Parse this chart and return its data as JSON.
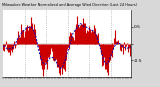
{
  "title": "Milwaukee Weather Normalized and Average Wind Direction (Last 24 Hours)",
  "background_color": "#d8d8d8",
  "plot_bg_color": "#ffffff",
  "red_color": "#cc0000",
  "blue_color": "#0000bb",
  "grid_color": "#999999",
  "n_points": 144,
  "seed": 42,
  "bar_values": [
    -0.25,
    -0.2,
    -0.15,
    -0.1,
    -0.18,
    -0.22,
    -0.28,
    -0.35,
    -0.3,
    -0.25,
    -0.2,
    -0.1,
    0.05,
    0.1,
    0.15,
    0.2,
    0.28,
    0.35,
    0.32,
    0.38,
    0.42,
    0.45,
    0.4,
    0.38,
    0.45,
    0.5,
    0.55,
    0.52,
    0.48,
    0.55,
    0.6,
    0.58,
    0.62,
    0.55,
    0.5,
    0.45,
    0.4,
    0.35,
    0.1,
    -0.1,
    -0.3,
    -0.5,
    -0.65,
    -0.75,
    -0.8,
    -0.78,
    -0.72,
    -0.68,
    -0.62,
    -0.55,
    -0.45,
    -0.35,
    -0.25,
    -0.2,
    -0.28,
    -0.35,
    -0.4,
    -0.48,
    -0.55,
    -0.6,
    -0.65,
    -0.7,
    -0.75,
    -0.8,
    -0.85,
    -0.88,
    -0.9,
    -0.85,
    -0.8,
    -0.75,
    -0.55,
    -0.35,
    -0.1,
    0.05,
    0.15,
    0.25,
    0.3,
    0.25,
    0.2,
    0.35,
    0.45,
    0.55,
    0.65,
    0.7,
    0.65,
    0.55,
    0.45,
    0.55,
    0.65,
    0.7,
    0.6,
    0.5,
    0.4,
    0.35,
    0.45,
    0.55,
    0.5,
    0.4,
    0.35,
    0.45,
    0.55,
    0.6,
    0.5,
    0.4,
    0.3,
    0.2,
    0.1,
    0.0,
    -0.15,
    -0.3,
    -0.45,
    -0.55,
    -0.65,
    -0.7,
    -0.75,
    -0.8,
    -0.85,
    -0.8,
    -0.7,
    -0.6,
    -0.45,
    -0.3,
    -0.15,
    0.0,
    0.1,
    0.15,
    0.2,
    0.15,
    0.1,
    0.05,
    0.0,
    -0.05,
    -0.1,
    -0.15,
    -0.2,
    -0.15,
    -0.1,
    -0.05,
    -0.08,
    -0.12,
    -0.15,
    -0.18,
    -0.2,
    -0.22
  ],
  "noise_scale": 0.12,
  "smooth_window": 12,
  "grid_positions": [
    24,
    48,
    72,
    96,
    120
  ],
  "ytick_vals": [
    0.5,
    0.0,
    -0.5
  ],
  "n_xticks": 48
}
